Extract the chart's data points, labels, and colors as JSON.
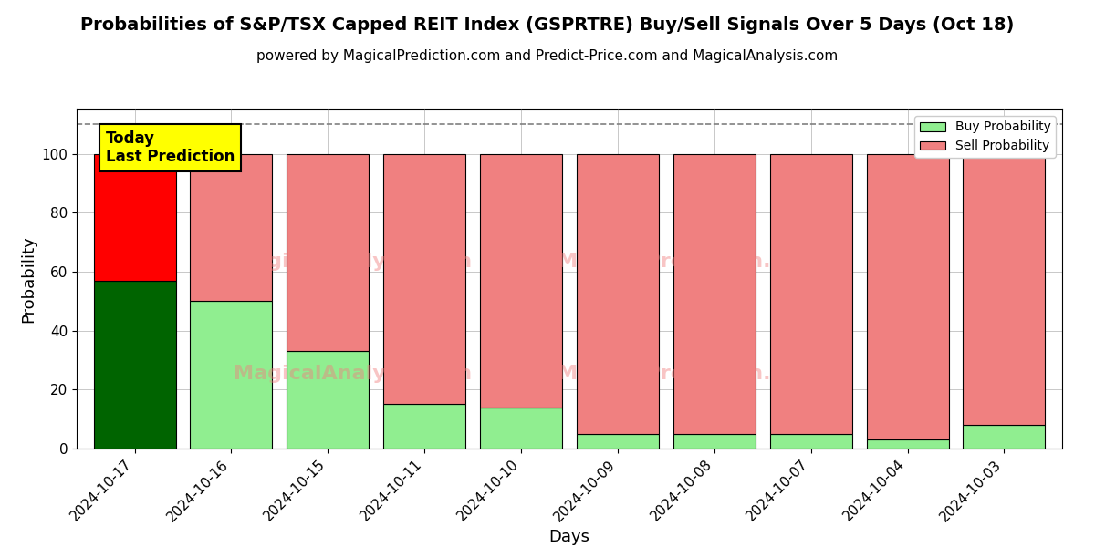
{
  "title": "Probabilities of S&P/TSX Capped REIT Index (GSPRTRE) Buy/Sell Signals Over 5 Days (Oct 18)",
  "subtitle": "powered by MagicalPrediction.com and Predict-Price.com and MagicalAnalysis.com",
  "xlabel": "Days",
  "ylabel": "Probability",
  "categories": [
    "2024-10-17",
    "2024-10-16",
    "2024-10-15",
    "2024-10-11",
    "2024-10-10",
    "2024-10-09",
    "2024-10-08",
    "2024-10-07",
    "2024-10-04",
    "2024-10-03"
  ],
  "buy_values": [
    57,
    50,
    33,
    15,
    14,
    5,
    5,
    5,
    3,
    8
  ],
  "sell_values": [
    43,
    50,
    67,
    85,
    86,
    95,
    95,
    95,
    97,
    92
  ],
  "today_buy_color": "#006400",
  "today_sell_color": "#FF0000",
  "buy_color": "#90EE90",
  "sell_color": "#F08080",
  "today_annotation_bg": "#FFFF00",
  "today_annotation_text": "Today\nLast Prediction",
  "dashed_line_y": 110,
  "ylim": [
    0,
    115
  ],
  "yticks": [
    0,
    20,
    40,
    60,
    80,
    100
  ],
  "bar_edgecolor": "#000000",
  "legend_buy_label": "Buy Probability",
  "legend_sell_label": "Sell Probability",
  "title_fontsize": 14,
  "subtitle_fontsize": 11,
  "axis_label_fontsize": 13,
  "tick_fontsize": 11,
  "bar_width": 0.85
}
